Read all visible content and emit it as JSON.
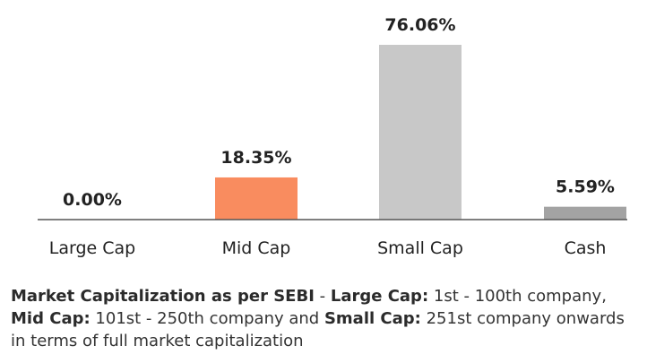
{
  "chart_data": {
    "type": "bar",
    "categories": [
      "Large Cap",
      "Mid Cap",
      "Small Cap",
      "Cash"
    ],
    "values": [
      0.0,
      18.35,
      76.06,
      5.59
    ],
    "data_labels": [
      "0.00%",
      "18.35%",
      "76.06%",
      "5.59%"
    ],
    "colors": [
      "#bdbdbd",
      "#f98c5f",
      "#c8c8c8",
      "#a3a3a3"
    ],
    "axis_color": "#555555",
    "ylim": [
      0,
      80
    ],
    "grid": false,
    "legend": "none"
  },
  "footnote": {
    "part1_bold": "Market Capitalization as per SEBI",
    "part2": " - ",
    "part3_bold": "Large Cap:",
    "part4": " 1st - 100th company, ",
    "part5_bold": "Mid Cap:",
    "part6": " 101st - 250th company and ",
    "part7_bold": "Small Cap:",
    "part8": " 251st company onwards in terms of full market capitalization"
  }
}
